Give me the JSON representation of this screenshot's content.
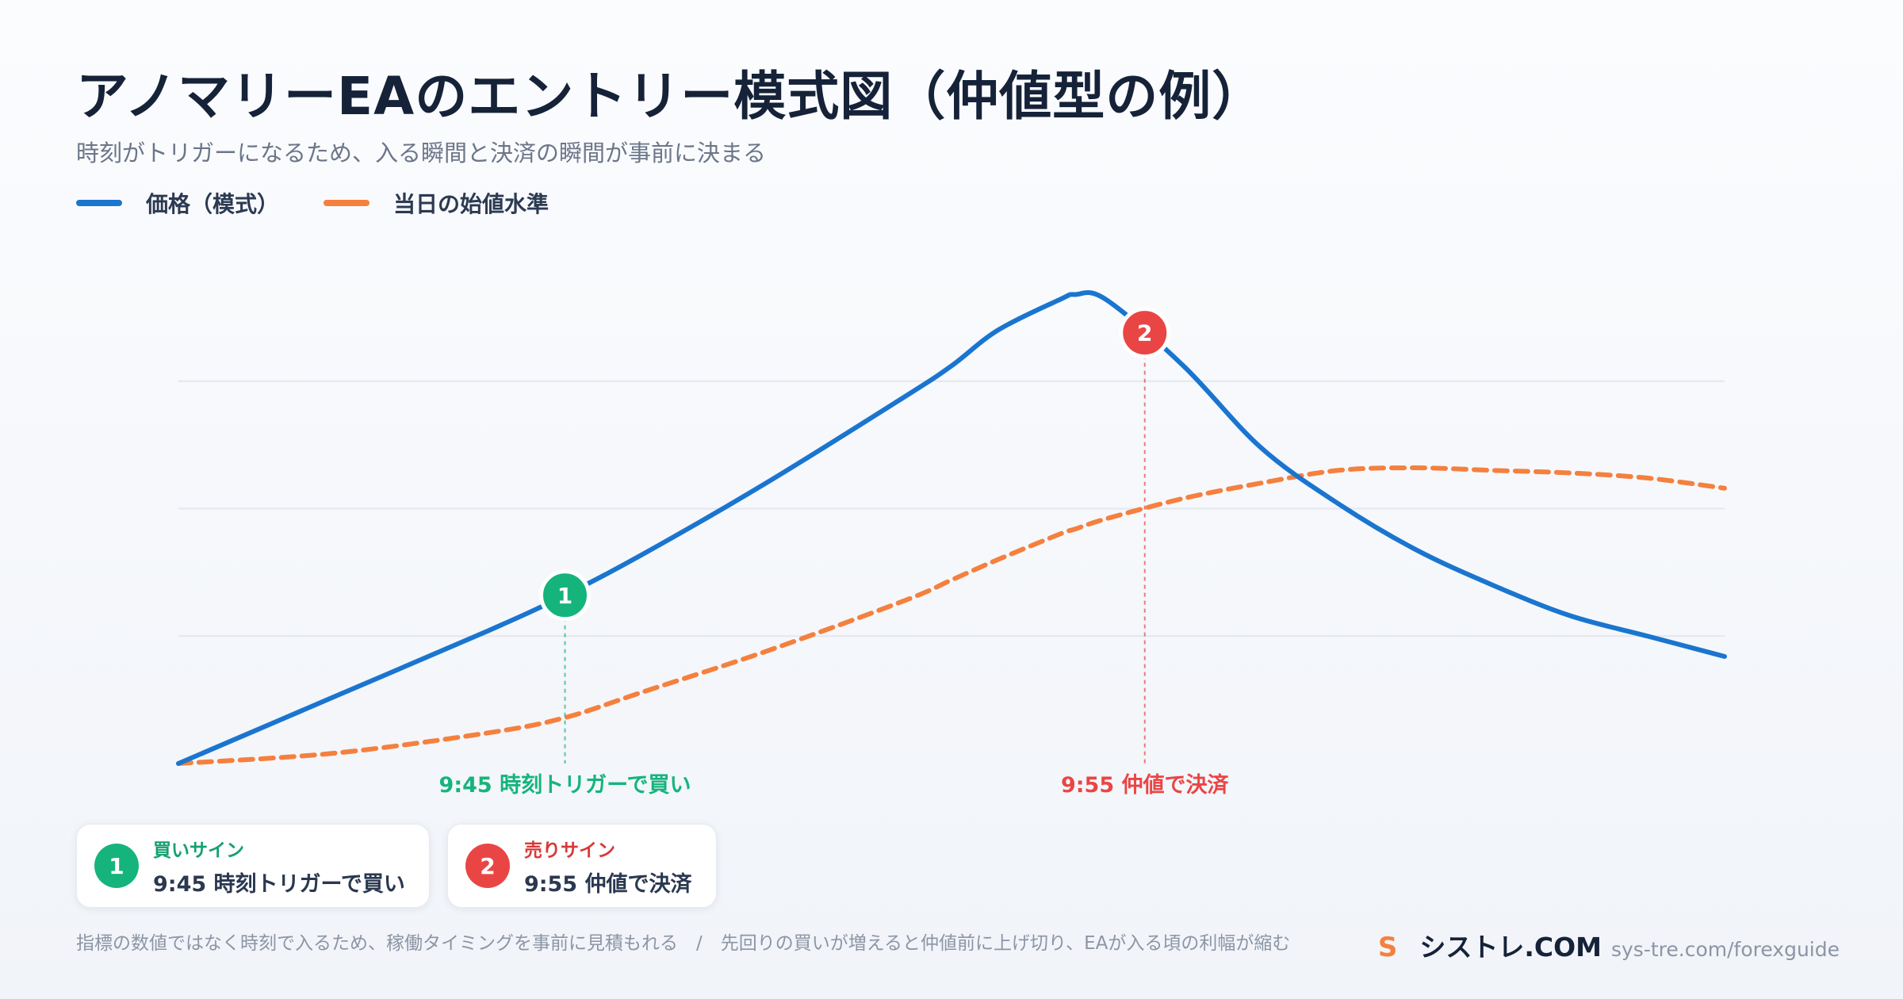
{
  "header": {
    "title": "アノマリーEAのエントリー模式図（仲値型の例）",
    "subtitle": "時刻がトリガーになるため、入る瞬間と決済の瞬間が事前に決まる"
  },
  "legend": [
    {
      "label": "価格（模式）",
      "color": "#1a75cf"
    },
    {
      "label": "当日の始値水準",
      "color": "#f5803e"
    }
  ],
  "chart_data": {
    "type": "line",
    "grid": true,
    "x": [
      0,
      0.1,
      0.2,
      0.25,
      0.3,
      0.38,
      0.47,
      0.5,
      0.53,
      0.57,
      0.58,
      0.6,
      0.65,
      0.7,
      0.75,
      0.8,
      0.85,
      0.9,
      0.95,
      1.0
    ],
    "series": [
      {
        "name": "価格（模式）",
        "style": "solid",
        "color": "#1a75cf",
        "values": [
          0.0,
          0.13,
          0.26,
          0.33,
          0.41,
          0.55,
          0.72,
          0.78,
          0.85,
          0.91,
          0.92,
          0.91,
          0.78,
          0.62,
          0.51,
          0.42,
          0.35,
          0.29,
          0.25,
          0.21
        ]
      },
      {
        "name": "当日の始値水準",
        "style": "dashed",
        "color": "#f5803e",
        "values": [
          0.0,
          0.02,
          0.06,
          0.09,
          0.14,
          0.22,
          0.32,
          0.36,
          0.4,
          0.45,
          0.46,
          0.48,
          0.52,
          0.55,
          0.575,
          0.58,
          0.575,
          0.57,
          0.56,
          0.54
        ]
      }
    ],
    "markers": [
      {
        "id": "1",
        "x": 0.25,
        "series": 0,
        "label": "9:45 時刻トリガーで買い",
        "color": "#15b47c"
      },
      {
        "id": "2",
        "x": 0.625,
        "series": 0,
        "label": "9:55 仲値で決済",
        "color": "#ea4545"
      }
    ],
    "grid_levels": [
      0.25,
      0.5,
      0.75
    ]
  },
  "cards": [
    {
      "badge": "1",
      "title": "買いサイン",
      "desc": "9:45 時刻トリガーで買い",
      "color": "#15b47c"
    },
    {
      "badge": "2",
      "title": "売りサイン",
      "desc": "9:55 仲値で決済",
      "color": "#d93838"
    }
  ],
  "footer": {
    "note": "指標の数値ではなく時刻で入るため、稼働タイミングを事前に見積もれる　/　先回りの買いが増えると仲値前に上げ切り、EAが入る頃の利幅が縮む",
    "brand_icon": "S",
    "brand_name": "シストレ.COM",
    "brand_url": "sys-tre.com/forexguide"
  }
}
